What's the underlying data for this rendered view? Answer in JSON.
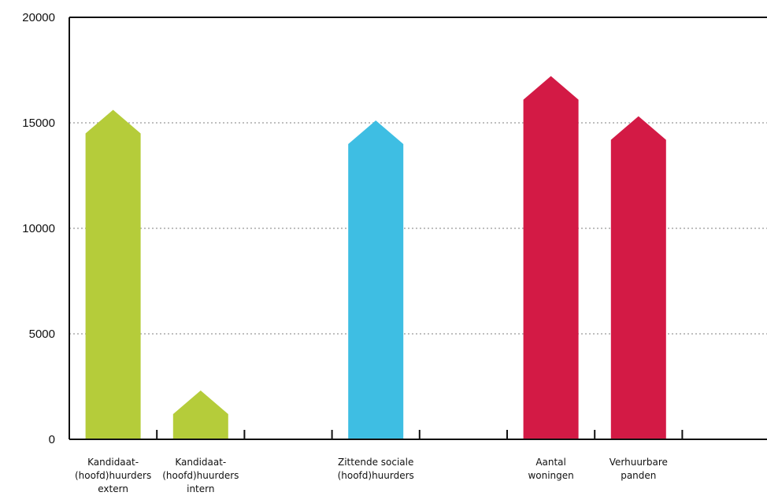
{
  "colors": {
    "green": "#b5cc3a",
    "blue": "#3ebee3",
    "red": "#d31a45",
    "axis": "#111111",
    "grid": "#aaaaaa"
  },
  "chart_data": {
    "type": "bar",
    "title": "",
    "xlabel": "",
    "ylabel": "",
    "ylim": [
      0,
      20000
    ],
    "yticks": [
      0,
      5000,
      10000,
      15000,
      20000
    ],
    "grid": true,
    "bar_shape": "house-arrow",
    "slots": 8,
    "categories": [
      {
        "slot": 0,
        "label": [
          "Kandidaat-",
          "(hoofd)huurders",
          "extern"
        ],
        "value": 15300,
        "color": "green"
      },
      {
        "slot": 1,
        "label": [
          "Kandidaat-",
          "(hoofd)huurders",
          "intern"
        ],
        "value": 2000,
        "color": "green"
      },
      {
        "slot": 3,
        "label": [
          "Zittende sociale",
          "(hoofd)huurders"
        ],
        "value": 14800,
        "color": "blue"
      },
      {
        "slot": 5,
        "label": [
          "Aantal",
          "woningen"
        ],
        "value": 16900,
        "color": "red"
      },
      {
        "slot": 6,
        "label": [
          "Verhuurbare",
          "panden"
        ],
        "value": 15000,
        "color": "red"
      }
    ]
  }
}
